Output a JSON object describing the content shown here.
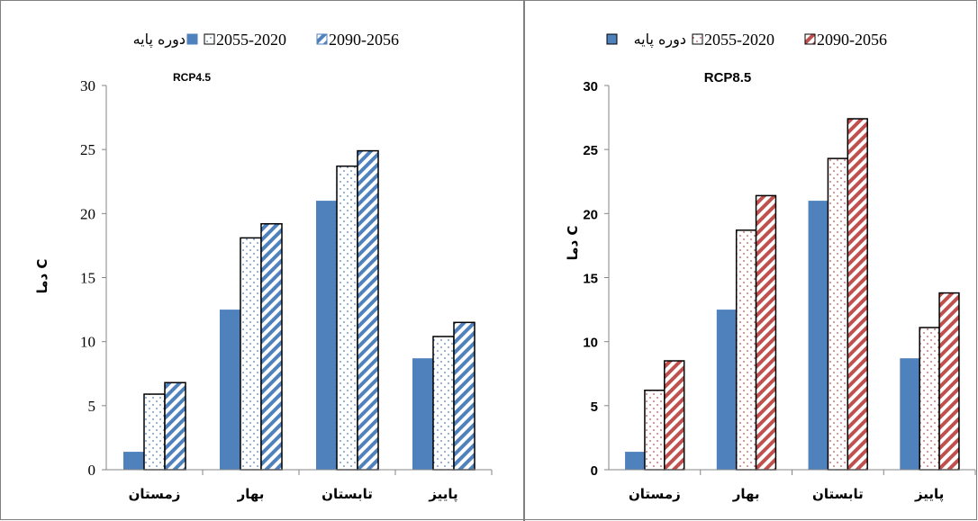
{
  "chart_data": [
    {
      "type": "bar",
      "title": "RCP4.5",
      "ylabel": "دما C",
      "categories": [
        "زمستان",
        "بهار",
        "تابستان",
        "پاییز"
      ],
      "ylim": [
        0,
        30
      ],
      "yticks": [
        0,
        5,
        10,
        15,
        20,
        25,
        30
      ],
      "grid": false,
      "legend": "top",
      "series": [
        {
          "name": "دوره پایه",
          "values": [
            1.4,
            12.5,
            21.0,
            8.7
          ],
          "color": "#4f81bd",
          "pattern": "solid"
        },
        {
          "name": "2055-2020",
          "values": [
            5.9,
            18.1,
            23.7,
            10.4
          ],
          "color": "#4f81bd",
          "pattern": "dots"
        },
        {
          "name": "2090-2056",
          "values": [
            6.8,
            19.2,
            24.9,
            11.5
          ],
          "color": "#4f81bd",
          "pattern": "diagonal"
        }
      ]
    },
    {
      "type": "bar",
      "title": "RCP8.5",
      "ylabel": "دما C",
      "categories": [
        "زمستان",
        "بهار",
        "تابستان",
        "پاییز"
      ],
      "ylim": [
        0,
        30
      ],
      "yticks": [
        0,
        5,
        10,
        15,
        20,
        25,
        30
      ],
      "grid": false,
      "legend": "top",
      "series": [
        {
          "name": "دوره پایه",
          "values": [
            1.4,
            12.5,
            21.0,
            8.7
          ],
          "color": "#4f81bd",
          "pattern": "solid"
        },
        {
          "name": "2055-2020",
          "values": [
            6.2,
            18.7,
            24.3,
            11.1
          ],
          "color": "#c0504d",
          "pattern": "dots"
        },
        {
          "name": "2090-2056",
          "values": [
            8.5,
            21.4,
            27.4,
            13.8
          ],
          "color": "#c0504d",
          "pattern": "diagonal"
        }
      ]
    }
  ]
}
